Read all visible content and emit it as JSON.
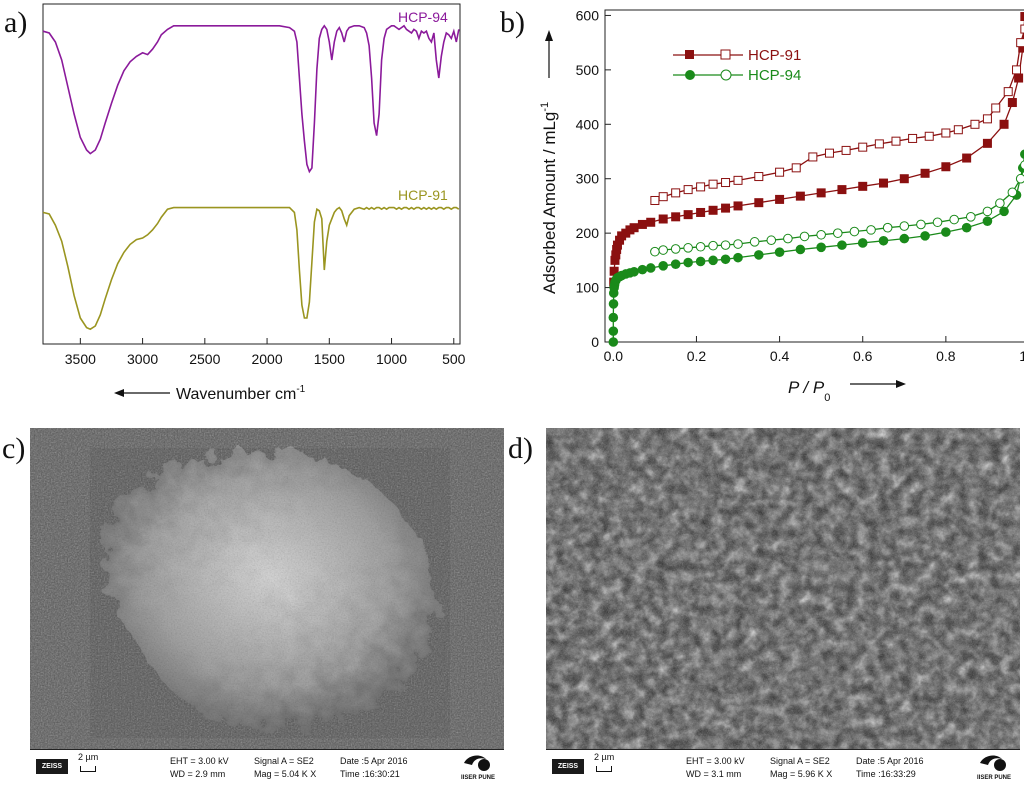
{
  "panels": {
    "a": "a)",
    "b": "b)",
    "c": "c)",
    "d": "d)"
  },
  "chart_data": [
    {
      "type": "line",
      "panel": "a",
      "xlabel": "Wavenumber cm",
      "xlabel_sup": "-1",
      "x_ticks": [
        3500,
        3000,
        2500,
        2000,
        1500,
        1000,
        500
      ],
      "xlim": [
        3800,
        450
      ],
      "x_reversed": true,
      "series": [
        {
          "name": "HCP-94",
          "color": "#8b1a9b",
          "x": [
            3800,
            3750,
            3700,
            3650,
            3600,
            3550,
            3500,
            3450,
            3420,
            3380,
            3340,
            3300,
            3250,
            3200,
            3150,
            3100,
            3050,
            3000,
            2960,
            2920,
            2880,
            2850,
            2800,
            2750,
            2700,
            2600,
            2500,
            2400,
            2300,
            2200,
            2100,
            2000,
            1900,
            1820,
            1780,
            1760,
            1740,
            1720,
            1700,
            1680,
            1660,
            1640,
            1620,
            1600,
            1580,
            1560,
            1540,
            1520,
            1500,
            1480,
            1460,
            1440,
            1420,
            1400,
            1380,
            1360,
            1340,
            1300,
            1260,
            1220,
            1200,
            1180,
            1160,
            1140,
            1120,
            1100,
            1080,
            1060,
            1040,
            1020,
            1000,
            980,
            960,
            940,
            920,
            900,
            880,
            860,
            840,
            820,
            800,
            780,
            760,
            740,
            720,
            700,
            680,
            660,
            640,
            620,
            600,
            580,
            560,
            540,
            520,
            500,
            480,
            460
          ],
          "y": [
            96,
            95,
            90,
            80,
            65,
            50,
            37,
            30,
            28,
            30,
            36,
            45,
            56,
            66,
            74,
            79,
            82,
            84,
            83,
            86,
            90,
            94,
            97,
            99,
            99,
            99,
            99,
            99,
            99,
            99,
            99,
            99,
            99,
            98,
            96,
            90,
            70,
            50,
            35,
            22,
            18,
            20,
            45,
            75,
            92,
            97,
            99,
            97,
            90,
            80,
            90,
            96,
            98,
            95,
            90,
            96,
            98,
            99,
            99,
            98,
            95,
            88,
            70,
            45,
            38,
            50,
            80,
            92,
            97,
            98,
            99,
            99,
            98,
            97,
            98,
            99,
            97,
            96,
            95,
            97,
            96,
            92,
            96,
            95,
            96,
            92,
            90,
            95,
            80,
            70,
            82,
            90,
            95,
            94,
            92,
            96,
            90,
            97
          ]
        },
        {
          "name": "HCP-91",
          "color": "#9a9520",
          "x": [
            3800,
            3750,
            3700,
            3650,
            3600,
            3550,
            3500,
            3450,
            3420,
            3380,
            3340,
            3300,
            3250,
            3200,
            3150,
            3100,
            3050,
            3000,
            2960,
            2920,
            2880,
            2850,
            2800,
            2750,
            2700,
            2600,
            2500,
            2400,
            2300,
            2200,
            2100,
            2000,
            1900,
            1820,
            1780,
            1760,
            1740,
            1720,
            1700,
            1680,
            1660,
            1640,
            1620,
            1600,
            1580,
            1560,
            1540,
            1520,
            1500,
            1480,
            1460,
            1440,
            1420,
            1400,
            1380,
            1360,
            1340,
            1300,
            1260,
            1220,
            1200,
            1180,
            1160,
            1140,
            1120,
            1100,
            1080,
            1060,
            1040,
            1020,
            1000,
            980,
            960,
            940,
            920,
            900,
            880,
            860,
            840,
            820,
            800,
            780,
            760,
            740,
            720,
            700,
            680,
            660,
            640,
            620,
            600,
            580,
            560,
            540,
            520,
            500,
            480,
            460
          ],
          "y": [
            96,
            95,
            88,
            78,
            62,
            44,
            30,
            24,
            23,
            25,
            32,
            42,
            54,
            64,
            71,
            76,
            79,
            80,
            82,
            85,
            89,
            93,
            98,
            99,
            99,
            99,
            99,
            99,
            99,
            99,
            99,
            99,
            99,
            99,
            96,
            85,
            60,
            38,
            30,
            30,
            40,
            65,
            90,
            98,
            97,
            92,
            60,
            78,
            88,
            92,
            96,
            98,
            99,
            97,
            92,
            88,
            94,
            98,
            99,
            98,
            99,
            98,
            99,
            98,
            99,
            99,
            98,
            99,
            98,
            99,
            99,
            99,
            98,
            99,
            98,
            99,
            99,
            98,
            99,
            98,
            99,
            99,
            98,
            99,
            98,
            99,
            98,
            99,
            98,
            99,
            99,
            98,
            99,
            99,
            98,
            99,
            99,
            98
          ]
        }
      ]
    },
    {
      "type": "scatter",
      "panel": "b",
      "xlabel": "P / P",
      "xlabel_sub": "0",
      "ylabel": "Adsorbed Amount / mLg",
      "ylabel_sup": "-1",
      "xlim": [
        -0.02,
        1.0
      ],
      "ylim": [
        0,
        610
      ],
      "x_ticks": [
        "0.0",
        "0.2",
        "0.4",
        "0.6",
        "0.8",
        "1.0"
      ],
      "y_ticks": [
        "0",
        "100",
        "200",
        "300",
        "400",
        "500",
        "600"
      ],
      "legend": "top-left",
      "series": [
        {
          "name": "HCP-91",
          "color": "#8b1010",
          "marker": "square",
          "branch": "adsorption",
          "filled": true,
          "x": [
            0.001,
            0.002,
            0.004,
            0.006,
            0.008,
            0.01,
            0.015,
            0.02,
            0.03,
            0.04,
            0.05,
            0.07,
            0.09,
            0.12,
            0.15,
            0.18,
            0.21,
            0.24,
            0.27,
            0.3,
            0.35,
            0.4,
            0.45,
            0.5,
            0.55,
            0.6,
            0.65,
            0.7,
            0.75,
            0.8,
            0.85,
            0.9,
            0.94,
            0.96,
            0.975,
            0.985,
            0.99
          ],
          "y": [
            110,
            130,
            150,
            160,
            170,
            178,
            187,
            195,
            200,
            206,
            210,
            216,
            220,
            226,
            230,
            234,
            238,
            242,
            246,
            250,
            256,
            262,
            268,
            274,
            280,
            286,
            292,
            300,
            310,
            322,
            338,
            365,
            400,
            440,
            485,
            540,
            598
          ]
        },
        {
          "name": "HCP-91",
          "color": "#8b1010",
          "marker": "square",
          "branch": "desorption",
          "filled": false,
          "x": [
            0.99,
            0.98,
            0.97,
            0.95,
            0.92,
            0.9,
            0.87,
            0.83,
            0.8,
            0.76,
            0.72,
            0.68,
            0.64,
            0.6,
            0.56,
            0.52,
            0.48,
            0.44,
            0.4,
            0.35,
            0.3,
            0.27,
            0.24,
            0.21,
            0.18,
            0.15,
            0.12,
            0.1
          ],
          "y": [
            575,
            550,
            500,
            460,
            430,
            410,
            400,
            390,
            384,
            378,
            374,
            369,
            364,
            358,
            352,
            347,
            340,
            320,
            312,
            304,
            297,
            293,
            290,
            285,
            280,
            274,
            267,
            260
          ]
        },
        {
          "name": "HCP-94",
          "color": "#1a8a1a",
          "marker": "circle",
          "branch": "adsorption",
          "filled": true,
          "x": [
            0.0,
            0.0,
            0.0,
            0.0005,
            0.001,
            0.002,
            0.003,
            0.004,
            0.006,
            0.008,
            0.01,
            0.015,
            0.02,
            0.03,
            0.04,
            0.05,
            0.07,
            0.09,
            0.12,
            0.15,
            0.18,
            0.21,
            0.24,
            0.27,
            0.3,
            0.35,
            0.4,
            0.45,
            0.5,
            0.55,
            0.6,
            0.65,
            0.7,
            0.75,
            0.8,
            0.85,
            0.9,
            0.94,
            0.97,
            0.985,
            0.99
          ],
          "y": [
            0,
            20,
            45,
            70,
            90,
            100,
            105,
            110,
            113,
            116,
            118,
            120,
            122,
            125,
            127,
            129,
            133,
            136,
            140,
            143,
            146,
            148,
            150,
            152,
            155,
            160,
            165,
            170,
            174,
            178,
            182,
            186,
            190,
            195,
            202,
            210,
            222,
            240,
            270,
            320,
            345
          ]
        },
        {
          "name": "HCP-94",
          "color": "#1a8a1a",
          "marker": "circle",
          "branch": "desorption",
          "filled": false,
          "x": [
            0.99,
            0.98,
            0.96,
            0.93,
            0.9,
            0.86,
            0.82,
            0.78,
            0.74,
            0.7,
            0.66,
            0.62,
            0.58,
            0.54,
            0.5,
            0.46,
            0.42,
            0.38,
            0.34,
            0.3,
            0.27,
            0.24,
            0.21,
            0.18,
            0.15,
            0.12,
            0.1
          ],
          "y": [
            325,
            300,
            275,
            255,
            240,
            230,
            225,
            220,
            216,
            213,
            210,
            206,
            203,
            200,
            197,
            194,
            190,
            187,
            184,
            180,
            178,
            177,
            175,
            173,
            171,
            169,
            166
          ]
        }
      ]
    }
  ],
  "sem_images": [
    {
      "panel": "c",
      "logo_text": "ZEISS",
      "scale": "2 µm",
      "eht": "EHT = 3.00 kV",
      "wd": "WD = 2.9 mm",
      "signal": "Signal A = SE2",
      "mag": "Mag =  5.04 K X",
      "date": "Date :5 Apr 2016",
      "time": "Time :16:30:21",
      "institute": "IISER PUNE"
    },
    {
      "panel": "d",
      "logo_text": "ZEISS",
      "scale": "2 µm",
      "eht": "EHT = 3.00 kV",
      "wd": "WD = 3.1 mm",
      "signal": "Signal A = SE2",
      "mag": "Mag =  5.96 K X",
      "date": "Date :5 Apr 2016",
      "time": "Time :16:33:29",
      "institute": "IISER PUNE"
    }
  ]
}
